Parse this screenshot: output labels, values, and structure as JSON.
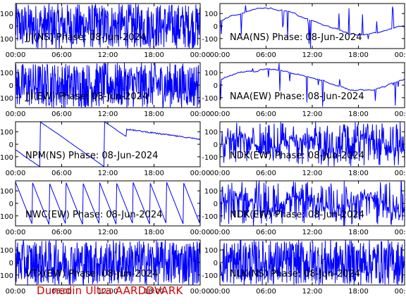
{
  "footer": "Dunedin Ultra AARDDVARK",
  "colors": {
    "trace": "#0000ff",
    "axes": "#000000",
    "footer": "#d40000",
    "background": "#ffffff"
  },
  "chart_data": [
    {
      "type": "line",
      "title": "JJI(NS) Phase: 08-Jun-2024",
      "x_ticks": [
        "00:00",
        "06:00",
        "12:00",
        "18:00",
        "00:00"
      ],
      "y_ticks": [
        "-100",
        "0",
        "100"
      ],
      "ylim": [
        -180,
        180
      ],
      "profile": "dense"
    },
    {
      "type": "line",
      "title": "NAA(NS) Phase: 08-Jun-2024",
      "x_ticks": [
        "00:00",
        "06:00",
        "12:00",
        "18:00",
        "00:00"
      ],
      "y_ticks": [
        "-100",
        "0",
        "100"
      ],
      "ylim": [
        -180,
        180
      ],
      "profile": "drift"
    },
    {
      "type": "line",
      "title": "JJI(EW) Phase: 08-Jun-2024",
      "x_ticks": [
        "00:00",
        "06:00",
        "12:00",
        "18:00",
        "00:00"
      ],
      "y_ticks": [
        "-100",
        "0",
        "100"
      ],
      "ylim": [
        -180,
        180
      ],
      "profile": "dense"
    },
    {
      "type": "line",
      "title": "NAA(EW) Phase: 08-Jun-2024",
      "x_ticks": [
        "00:00",
        "06:00",
        "12:00",
        "18:00",
        "00:00"
      ],
      "y_ticks": [
        "-100",
        "0",
        "100"
      ],
      "ylim": [
        -180,
        180
      ],
      "profile": "drift"
    },
    {
      "type": "line",
      "title": "NPM(NS) Phase: 08-Jun-2024",
      "x_ticks": [
        "00:00",
        "06:00",
        "12:00",
        "18:00",
        "00:00"
      ],
      "y_ticks": [
        "-100",
        "0",
        "100"
      ],
      "ylim": [
        -180,
        180
      ],
      "profile": "wrap"
    },
    {
      "type": "line",
      "title": "NDK(EW) Phase: 08-Jun-2024",
      "x_ticks": [
        "00:00",
        "06:00",
        "12:00",
        "18:00",
        "00:00"
      ],
      "y_ticks": [
        "-100",
        "0",
        "100"
      ],
      "ylim": [
        -180,
        180
      ],
      "profile": "noisy"
    },
    {
      "type": "line",
      "title": "NWC(EW) Phase: 08-Jun-2024",
      "x_ticks": [
        "00:00",
        "06:00",
        "12:00",
        "18:00",
        "00:00"
      ],
      "y_ticks": [
        "-100",
        "0",
        "100"
      ],
      "ylim": [
        -180,
        180
      ],
      "profile": "sawtooth"
    },
    {
      "type": "line",
      "title": "NDK(EW) Phase: 08-Jun-2024",
      "x_ticks": [
        "00:00",
        "06:00",
        "12:00",
        "18:00",
        "00:00"
      ],
      "y_ticks": [
        "-100",
        "0",
        "100"
      ],
      "ylim": [
        -180,
        180
      ],
      "profile": "noisy"
    },
    {
      "type": "line",
      "title": "VTX(EW) Phase: 08-Jun-2024",
      "x_ticks": [
        "00:00",
        "06:00",
        "12:00",
        "18:00",
        "00:00"
      ],
      "y_ticks": [
        "-100",
        "0",
        "100"
      ],
      "ylim": [
        -180,
        180
      ],
      "profile": "dense"
    },
    {
      "type": "line",
      "title": "NLK(NS) Phase: 08-Jun-2024",
      "x_ticks": [
        "00:00",
        "06:00",
        "12:00",
        "18:00",
        "00:00"
      ],
      "y_ticks": [
        "-100",
        "0",
        "100"
      ],
      "ylim": [
        -180,
        180
      ],
      "profile": "dense"
    }
  ]
}
